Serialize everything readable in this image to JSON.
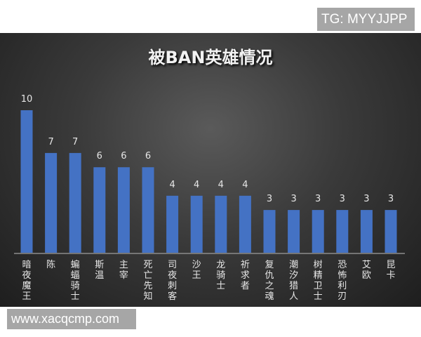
{
  "watermark_top": "TG: MYYJJPP",
  "watermark_bottom": "www.xacqcmp.com",
  "chart_data": {
    "type": "bar",
    "title": "被BAN英雄情况",
    "categories": [
      "暗夜魔王",
      "陈",
      "蝙蝠骑士",
      "斯温",
      "主宰",
      "死亡先知",
      "司夜刺客",
      "沙王",
      "龙骑士",
      "祈求者",
      "复仇之魂",
      "潮汐猎人",
      "树精卫士",
      "恐怖利刃",
      "艾欧",
      "昆卡"
    ],
    "values": [
      10,
      7,
      7,
      6,
      6,
      6,
      4,
      4,
      4,
      4,
      3,
      3,
      3,
      3,
      3,
      3
    ],
    "ylim": [
      0,
      10
    ],
    "grid": false,
    "legend": "none",
    "bar_color": "#4472c4",
    "background": "#2b2b2b"
  }
}
